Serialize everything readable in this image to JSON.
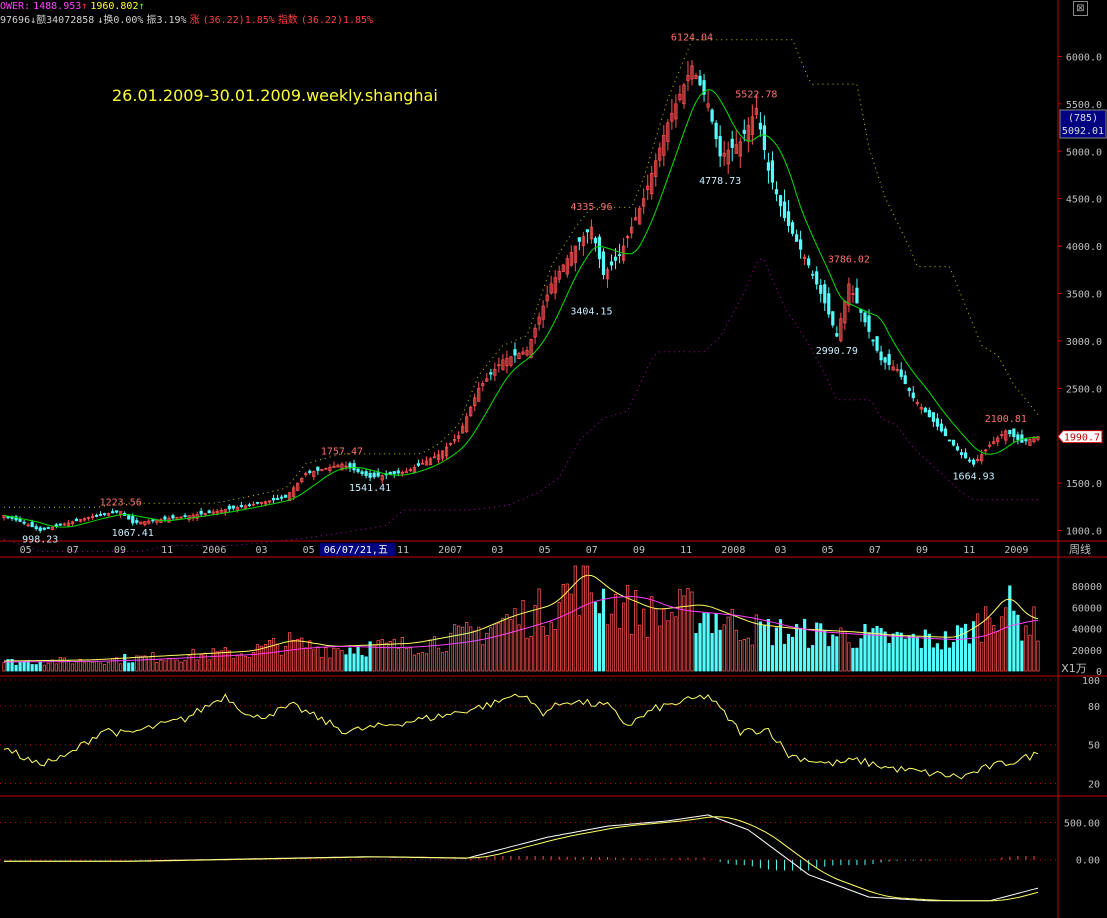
{
  "window": {
    "close_glyph": "⊠"
  },
  "info_bar": {
    "power_label": "OWER:",
    "power_value": "1488.953",
    "power_arrow": "↑",
    "power_value2": "1960.802",
    "power_arrow2": "↑",
    "vol_fragment": "97696",
    "amount_label": "↓额",
    "amount_value": "34072858",
    "turnover_label": "↓换",
    "turnover_value": "0.00%",
    "amplitude_label": "振",
    "amplitude_value": "3.19%",
    "change_label": "涨",
    "change_value": "(36.22)1.85%",
    "index_label": "指数",
    "index_value": "(36.22)1.85%"
  },
  "overlay_title": "26.01.2009-30.01.2009.weekly.shanghai",
  "colors": {
    "up": "#ff5050",
    "down": "#54fcfc",
    "ma_main": "#00e000",
    "band": "#c8c800",
    "band_lower": "#b000b0",
    "vol_ma1": "#ffff66",
    "vol_ma2": "#ff40ff",
    "axis_red": "#c00000",
    "grid": "#600000",
    "text": "#c0c0c0"
  },
  "chart_data": [
    {
      "type": "candlestick",
      "title": "",
      "ylim": [
        900,
        6300
      ],
      "y_ticks": [
        "6000.0",
        "5500.0",
        "5000.0",
        "4500.0",
        "4000.0",
        "3500.0",
        "3000.0",
        "2500.0",
        "2000.0",
        "1500.0",
        "1000.0"
      ],
      "x_ticks": [
        "05",
        "07",
        "09",
        "11",
        "2006",
        "03",
        "05",
        "06/07/21,五",
        "11",
        "2007",
        "03",
        "05",
        "07",
        "09",
        "11",
        "2008",
        "03",
        "05",
        "07",
        "09",
        "11",
        "2009"
      ],
      "period_label": "周线",
      "current_label": "1990.7",
      "side_box": [
        "(785)",
        "5092.01"
      ],
      "annotations": [
        {
          "text": "998.23",
          "week": 9,
          "value": 998.23,
          "kind": "low"
        },
        {
          "text": "1223.56",
          "week": 29,
          "value": 1223.56,
          "kind": "high"
        },
        {
          "text": "1067.41",
          "week": 32,
          "value": 1067.41,
          "kind": "low"
        },
        {
          "text": "1757.47",
          "week": 84,
          "value": 1757.47,
          "kind": "high"
        },
        {
          "text": "1541.41",
          "week": 91,
          "value": 1541.41,
          "kind": "low"
        },
        {
          "text": "4335.96",
          "week": 146,
          "value": 4335.96,
          "kind": "high"
        },
        {
          "text": "3404.15",
          "week": 146,
          "value": 3404.15,
          "kind": "low"
        },
        {
          "text": "6124.04",
          "week": 171,
          "value": 6124.04,
          "kind": "high"
        },
        {
          "text": "5522.78",
          "week": 187,
          "value": 5522.78,
          "kind": "high"
        },
        {
          "text": "4778.73",
          "week": 178,
          "value": 4778.73,
          "kind": "low"
        },
        {
          "text": "3786.02",
          "week": 210,
          "value": 3786.02,
          "kind": "high"
        },
        {
          "text": "2990.79",
          "week": 207,
          "value": 2990.79,
          "kind": "low"
        },
        {
          "text": "2100.81",
          "week": 249,
          "value": 2100.81,
          "kind": "high"
        },
        {
          "text": "1664.93",
          "week": 241,
          "value": 1664.93,
          "kind": "low"
        }
      ],
      "anchors": [
        [
          0,
          1160
        ],
        [
          5,
          1080
        ],
        [
          9,
          1000
        ],
        [
          16,
          1080
        ],
        [
          22,
          1150
        ],
        [
          29,
          1200
        ],
        [
          32,
          1080
        ],
        [
          40,
          1120
        ],
        [
          50,
          1180
        ],
        [
          60,
          1260
        ],
        [
          70,
          1350
        ],
        [
          75,
          1600
        ],
        [
          84,
          1700
        ],
        [
          91,
          1560
        ],
        [
          100,
          1620
        ],
        [
          108,
          1800
        ],
        [
          113,
          2000
        ],
        [
          118,
          2500
        ],
        [
          124,
          2800
        ],
        [
          130,
          2900
        ],
        [
          136,
          3600
        ],
        [
          142,
          4000
        ],
        [
          146,
          4200
        ],
        [
          149,
          3700
        ],
        [
          153,
          3900
        ],
        [
          159,
          4500
        ],
        [
          165,
          5300
        ],
        [
          171,
          5900
        ],
        [
          175,
          5500
        ],
        [
          178,
          4950
        ],
        [
          183,
          5100
        ],
        [
          187,
          5450
        ],
        [
          190,
          4800
        ],
        [
          194,
          4300
        ],
        [
          200,
          3800
        ],
        [
          204,
          3400
        ],
        [
          207,
          3050
        ],
        [
          210,
          3600
        ],
        [
          214,
          3200
        ],
        [
          218,
          2800
        ],
        [
          222,
          2700
        ],
        [
          226,
          2400
        ],
        [
          230,
          2200
        ],
        [
          234,
          2000
        ],
        [
          238,
          1800
        ],
        [
          241,
          1700
        ],
        [
          245,
          1900
        ],
        [
          249,
          2050
        ],
        [
          253,
          1930
        ],
        [
          257,
          1990.7
        ]
      ]
    },
    {
      "type": "bar",
      "title": "",
      "unit_label": "X1万",
      "y_ticks": [
        "80000",
        "60000",
        "40000",
        "20000",
        "0"
      ],
      "ylim": [
        0,
        100000
      ],
      "anchors": [
        [
          0,
          9000
        ],
        [
          20,
          10000
        ],
        [
          40,
          14000
        ],
        [
          60,
          18000
        ],
        [
          70,
          28000
        ],
        [
          80,
          22000
        ],
        [
          100,
          25000
        ],
        [
          115,
          35000
        ],
        [
          125,
          50000
        ],
        [
          135,
          60000
        ],
        [
          143,
          90000
        ],
        [
          150,
          70000
        ],
        [
          160,
          55000
        ],
        [
          172,
          60000
        ],
        [
          185,
          42000
        ],
        [
          195,
          38000
        ],
        [
          210,
          35000
        ],
        [
          220,
          32000
        ],
        [
          235,
          30000
        ],
        [
          242,
          45000
        ],
        [
          248,
          70000
        ],
        [
          252,
          50000
        ],
        [
          257,
          45000
        ]
      ]
    },
    {
      "type": "line",
      "title": "",
      "y_ticks": [
        "100",
        "80",
        "50",
        "20"
      ],
      "ylim": [
        15,
        100
      ],
      "anchors": [
        [
          0,
          48
        ],
        [
          8,
          35
        ],
        [
          15,
          40
        ],
        [
          25,
          62
        ],
        [
          30,
          58
        ],
        [
          45,
          70
        ],
        [
          55,
          88
        ],
        [
          62,
          70
        ],
        [
          72,
          80
        ],
        [
          85,
          60
        ],
        [
          95,
          65
        ],
        [
          110,
          73
        ],
        [
          122,
          82
        ],
        [
          128,
          90
        ],
        [
          134,
          75
        ],
        [
          140,
          84
        ],
        [
          150,
          80
        ],
        [
          155,
          65
        ],
        [
          162,
          78
        ],
        [
          175,
          88
        ],
        [
          183,
          60
        ],
        [
          190,
          62
        ],
        [
          195,
          42
        ],
        [
          205,
          35
        ],
        [
          212,
          38
        ],
        [
          220,
          32
        ],
        [
          230,
          28
        ],
        [
          238,
          25
        ],
        [
          245,
          33
        ],
        [
          252,
          38
        ],
        [
          257,
          43
        ]
      ]
    },
    {
      "type": "line",
      "title": "",
      "y_ticks": [
        "500.00",
        "0.00"
      ],
      "ylim": [
        -700,
        800
      ],
      "anchors": [
        [
          0,
          -20
        ],
        [
          30,
          -20
        ],
        [
          60,
          10
        ],
        [
          90,
          40
        ],
        [
          115,
          20
        ],
        [
          135,
          300
        ],
        [
          150,
          450
        ],
        [
          165,
          520
        ],
        [
          175,
          600
        ],
        [
          185,
          400
        ],
        [
          200,
          -200
        ],
        [
          215,
          -500
        ],
        [
          230,
          -550
        ],
        [
          245,
          -550
        ],
        [
          257,
          -380
        ]
      ]
    }
  ]
}
